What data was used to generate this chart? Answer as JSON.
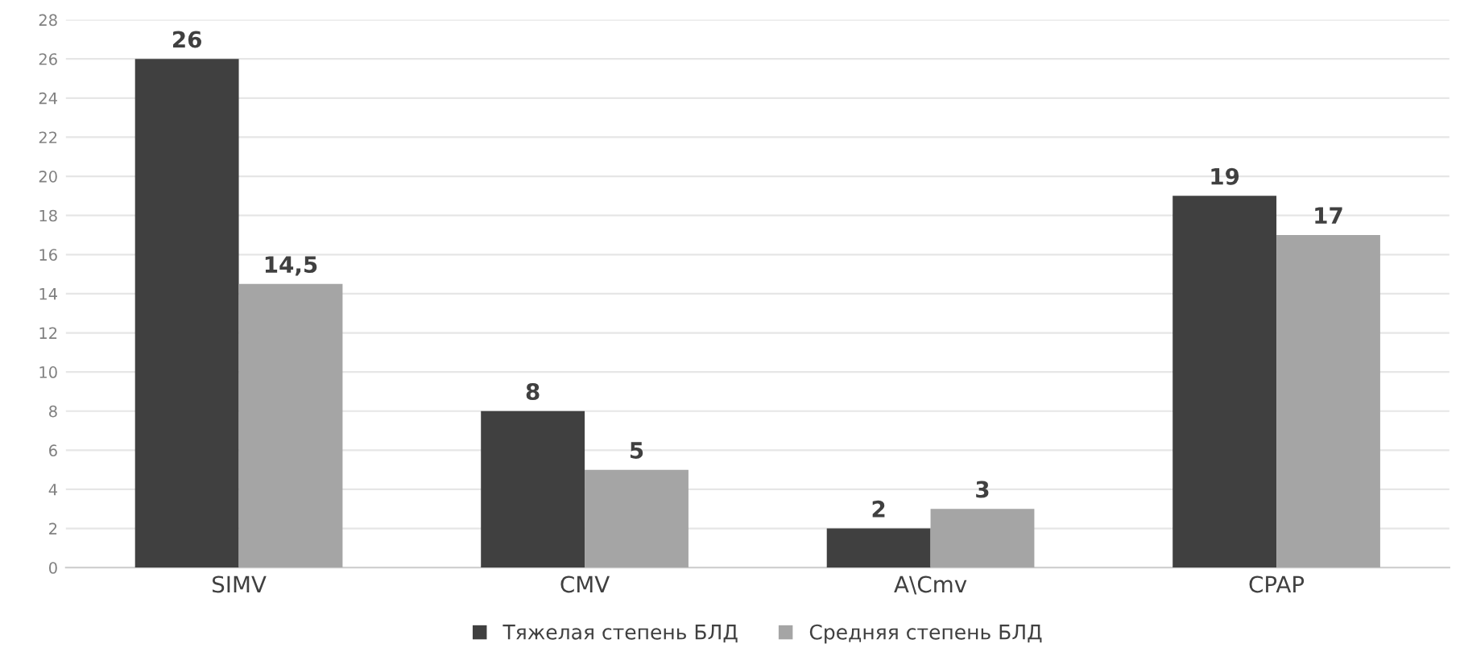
{
  "chart_data": {
    "type": "bar",
    "categories": [
      "SIMV",
      "CMV",
      "A\\Cmv",
      "CPAP"
    ],
    "series": [
      {
        "name": "Тяжелая степень БЛД",
        "color": "#404040",
        "values": [
          26,
          8,
          2,
          19
        ],
        "value_labels": [
          "26",
          "8",
          "2",
          "19"
        ]
      },
      {
        "name": "Средняя степень БЛД",
        "color": "#a5a5a5",
        "values": [
          14.5,
          5,
          3,
          17
        ],
        "value_labels": [
          "14,5",
          "5",
          "3",
          "17"
        ]
      }
    ],
    "ylim": [
      0,
      28
    ],
    "yticks": [
      0,
      2,
      4,
      6,
      8,
      10,
      12,
      14,
      16,
      18,
      20,
      22,
      24,
      26,
      28
    ],
    "grid": "y",
    "legend": "bottom"
  }
}
